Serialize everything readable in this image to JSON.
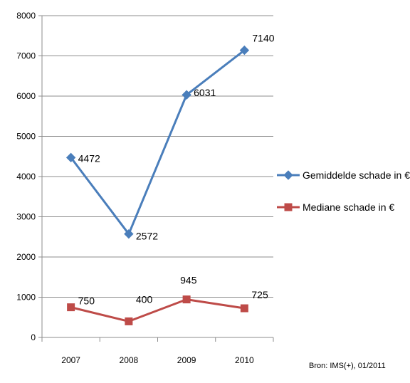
{
  "chart_data": {
    "type": "line",
    "categories": [
      "2007",
      "2008",
      "2009",
      "2010"
    ],
    "ylim": [
      0,
      8000
    ],
    "yticks": [
      0,
      1000,
      2000,
      3000,
      4000,
      5000,
      6000,
      7000,
      8000
    ],
    "grid": true,
    "legend_position": "right",
    "series": [
      {
        "name": "Gemiddelde schade in €",
        "values": [
          4472,
          2572,
          6031,
          7140
        ],
        "labels": [
          "4472",
          "2572",
          "6031",
          "7140"
        ],
        "color": "#4a7ebb",
        "marker": "diamond"
      },
      {
        "name": "Mediane schade in €",
        "values": [
          750,
          400,
          945,
          725
        ],
        "labels": [
          "750",
          "400",
          "945",
          "725"
        ],
        "color": "#be4b48",
        "marker": "square"
      }
    ]
  },
  "source_note": "Bron: IMS(+), 01/2011"
}
